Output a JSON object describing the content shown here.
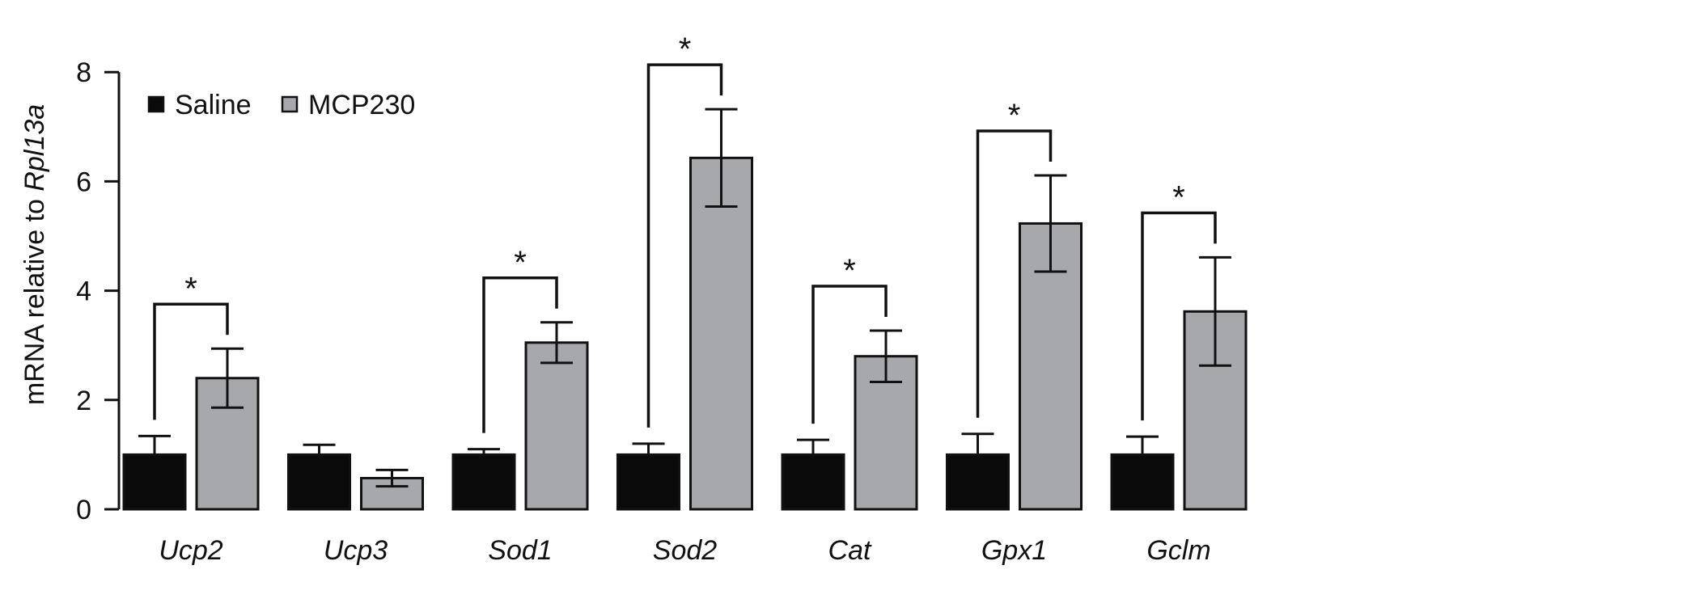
{
  "chart_data": {
    "type": "bar",
    "title": "",
    "xlabel": "",
    "ylabel": "mRNA relative to ",
    "ylabel_italic": "Rpl13a",
    "ylim": [
      0,
      8
    ],
    "yticks": [
      0,
      2,
      4,
      6,
      8
    ],
    "grid": false,
    "legend_position": "top-left",
    "categories": [
      "Ucp2",
      "Ucp3",
      "Sod1",
      "Sod2",
      "Cat",
      "Gpx1",
      "Gclm"
    ],
    "series": [
      {
        "name": "Saline",
        "color": "#0a0a0a",
        "values": [
          1.0,
          1.0,
          1.0,
          1.0,
          1.0,
          1.0,
          1.0
        ],
        "errors": [
          0.34,
          0.18,
          0.1,
          0.2,
          0.27,
          0.38,
          0.33
        ]
      },
      {
        "name": "MCP230",
        "color": "#a7a8ab",
        "values": [
          2.4,
          0.57,
          3.05,
          6.43,
          2.8,
          5.23,
          3.62
        ],
        "errors": [
          0.54,
          0.15,
          0.37,
          0.89,
          0.47,
          0.88,
          0.99
        ]
      }
    ],
    "significance": [
      {
        "category": "Ucp2",
        "label": "*"
      },
      {
        "category": "Sod1",
        "label": "*"
      },
      {
        "category": "Sod2",
        "label": "*"
      },
      {
        "category": "Cat",
        "label": "*"
      },
      {
        "category": "Gpx1",
        "label": "*"
      },
      {
        "category": "Gclm",
        "label": "*"
      }
    ]
  }
}
